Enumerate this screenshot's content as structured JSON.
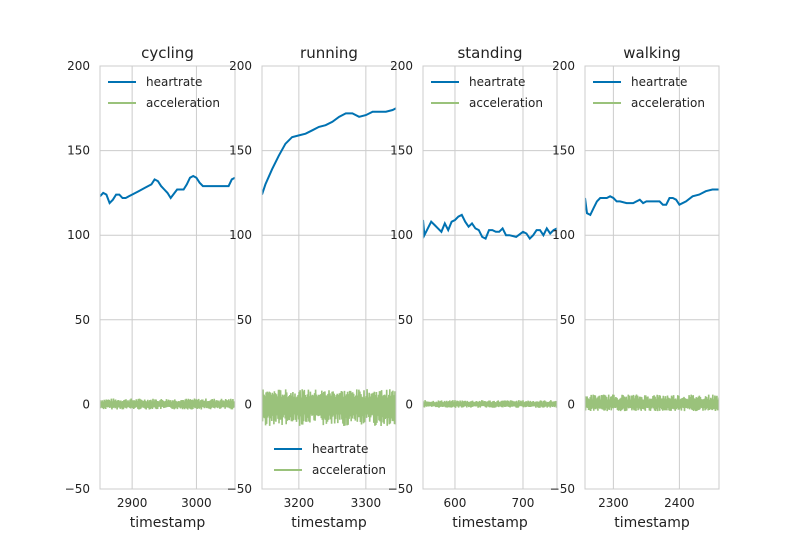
{
  "chart_data": [
    {
      "type": "line",
      "title": "cycling",
      "xlabel": "timestamp",
      "xlim": [
        2850,
        3060
      ],
      "ylim": [
        -50,
        200
      ],
      "xticks": [
        2900,
        3000
      ],
      "yticks": [
        -50,
        0,
        50,
        100,
        150,
        200
      ],
      "grid": true,
      "legend": "top-left",
      "series": [
        {
          "name": "heartrate",
          "color": "#0072b2",
          "x": [
            2850,
            2855,
            2860,
            2865,
            2870,
            2875,
            2880,
            2885,
            2890,
            2895,
            2900,
            2910,
            2920,
            2930,
            2935,
            2940,
            2945,
            2950,
            2955,
            2960,
            2970,
            2975,
            2980,
            2985,
            2990,
            2995,
            3000,
            3005,
            3010,
            3020,
            3030,
            3040,
            3050,
            3055,
            3060
          ],
          "y": [
            123,
            125,
            124,
            119,
            121,
            124,
            124,
            122,
            122,
            123,
            124,
            126,
            128,
            130,
            133,
            132,
            129,
            127,
            125,
            122,
            127,
            127,
            127,
            130,
            134,
            135,
            134,
            131,
            129,
            129,
            129,
            129,
            129,
            133,
            134
          ]
        },
        {
          "name": "acceleration",
          "color": "#9ac27b",
          "band": [
            -3,
            3.5
          ],
          "x": [
            2850,
            3060
          ],
          "y": [
            0,
            0
          ]
        }
      ]
    },
    {
      "type": "line",
      "title": "running",
      "xlabel": "timestamp",
      "xlim": [
        3145,
        3345
      ],
      "ylim": [
        -50,
        200
      ],
      "xticks": [
        3200,
        3300
      ],
      "yticks": [
        -50,
        0,
        50,
        100,
        150,
        200
      ],
      "grid": true,
      "legend": "bottom-right",
      "series": [
        {
          "name": "heartrate",
          "color": "#0072b2",
          "x": [
            3145,
            3150,
            3160,
            3170,
            3180,
            3190,
            3200,
            3210,
            3220,
            3230,
            3240,
            3250,
            3260,
            3270,
            3280,
            3290,
            3300,
            3310,
            3320,
            3330,
            3340,
            3345
          ],
          "y": [
            124,
            130,
            139,
            147,
            154,
            158,
            159,
            160,
            162,
            164,
            165,
            167,
            170,
            172,
            172,
            170,
            171,
            173,
            173,
            173,
            174,
            175
          ]
        },
        {
          "name": "acceleration",
          "color": "#9ac27b",
          "band": [
            -13,
            9
          ],
          "x": [
            3145,
            3345
          ],
          "y": [
            0,
            0
          ]
        }
      ]
    },
    {
      "type": "line",
      "title": "standing",
      "xlabel": "timestamp",
      "xlim": [
        553,
        750
      ],
      "ylim": [
        -50,
        200
      ],
      "xticks": [
        600,
        700
      ],
      "yticks": [
        -50,
        0,
        50,
        100,
        150,
        200
      ],
      "grid": true,
      "legend": "top-left",
      "series": [
        {
          "name": "heartrate",
          "color": "#0072b2",
          "x": [
            553,
            555,
            560,
            565,
            570,
            575,
            580,
            585,
            590,
            595,
            600,
            605,
            610,
            615,
            620,
            625,
            630,
            635,
            640,
            645,
            650,
            655,
            660,
            665,
            670,
            675,
            680,
            690,
            700,
            705,
            710,
            715,
            720,
            725,
            730,
            735,
            740,
            745,
            750
          ],
          "y": [
            109,
            100,
            104,
            108,
            106,
            104,
            102,
            107,
            103,
            108,
            109,
            111,
            112,
            108,
            105,
            107,
            104,
            103,
            99,
            98,
            103,
            103,
            102,
            102,
            104,
            100,
            100,
            99,
            102,
            101,
            98,
            100,
            103,
            103,
            100,
            104,
            101,
            103,
            104
          ]
        },
        {
          "name": "acceleration",
          "color": "#9ac27b",
          "band": [
            -2,
            2.5
          ],
          "x": [
            553,
            750
          ],
          "y": [
            0,
            0
          ]
        }
      ]
    },
    {
      "type": "line",
      "title": "walking",
      "xlabel": "timestamp",
      "xlim": [
        2257,
        2460
      ],
      "ylim": [
        -50,
        200
      ],
      "xticks": [
        2300,
        2400
      ],
      "yticks": [
        -50,
        0,
        50,
        100,
        150,
        200
      ],
      "grid": true,
      "legend": "top-left",
      "series": [
        {
          "name": "heartrate",
          "color": "#0072b2",
          "x": [
            2257,
            2260,
            2265,
            2270,
            2275,
            2280,
            2285,
            2290,
            2295,
            2300,
            2305,
            2310,
            2320,
            2330,
            2340,
            2345,
            2350,
            2355,
            2360,
            2370,
            2375,
            2380,
            2385,
            2390,
            2395,
            2400,
            2410,
            2420,
            2430,
            2440,
            2450,
            2460
          ],
          "y": [
            122,
            113,
            112,
            116,
            120,
            122,
            122,
            122,
            123,
            122,
            120,
            120,
            119,
            119,
            121,
            119,
            120,
            120,
            120,
            120,
            118,
            118,
            122,
            122,
            121,
            118,
            120,
            123,
            124,
            126,
            127,
            127
          ]
        },
        {
          "name": "acceleration",
          "color": "#9ac27b",
          "band": [
            -4,
            6
          ],
          "x": [
            2257,
            2460
          ],
          "y": [
            0,
            0
          ]
        }
      ]
    }
  ]
}
